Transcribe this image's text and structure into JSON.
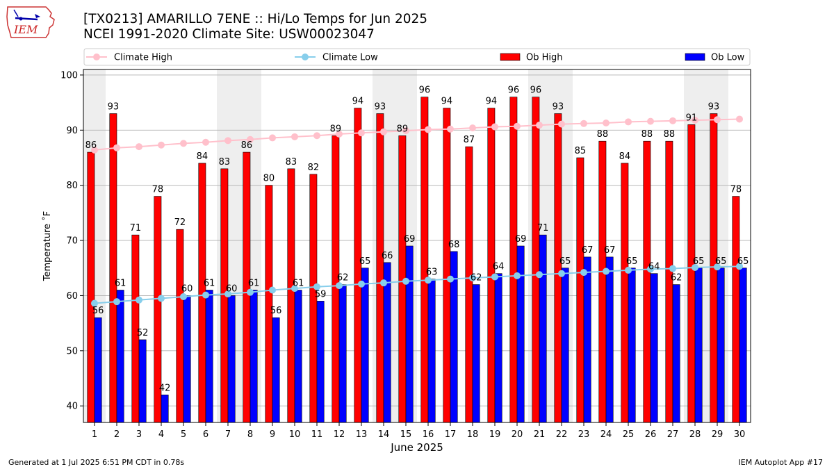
{
  "header": {
    "title": "[TX0213] AMARILLO 7ENE :: Hi/Lo Temps for Jun 2025",
    "subtitle": "NCEI 1991-2020 Climate Site: USW00023047",
    "logo_text": "IEM"
  },
  "footer": {
    "generated": "Generated at 1 Jul 2025 6:51 PM CDT in 0.78s",
    "app": "IEM Autoplot App #17"
  },
  "colors": {
    "ob_high": "#ff0000",
    "ob_low": "#0000ff",
    "climate_high": "#ffc0cb",
    "climate_low": "#87ceeb",
    "weekend_band": "#eeeeee",
    "grid": "#b0b0b0"
  },
  "chart_data": {
    "type": "bar",
    "title": "[TX0213] AMARILLO 7ENE :: Hi/Lo Temps for Jun 2025",
    "subtitle": "NCEI 1991-2020 Climate Site: USW00023047",
    "xlabel": "June 2025",
    "ylabel": "Temperature ˚F",
    "ylim": [
      37,
      101
    ],
    "yticks": [
      40,
      50,
      60,
      70,
      80,
      90,
      100
    ],
    "grid": true,
    "legend_position": "top",
    "categories": [
      1,
      2,
      3,
      4,
      5,
      6,
      7,
      8,
      9,
      10,
      11,
      12,
      13,
      14,
      15,
      16,
      17,
      18,
      19,
      20,
      21,
      22,
      23,
      24,
      25,
      26,
      27,
      28,
      29,
      30
    ],
    "shaded_days": [
      1,
      7,
      8,
      14,
      15,
      21,
      22,
      28,
      29
    ],
    "series": [
      {
        "name": "Climate High",
        "kind": "line",
        "values": [
          86.4,
          86.8,
          87.0,
          87.3,
          87.6,
          87.8,
          88.1,
          88.3,
          88.6,
          88.8,
          89.0,
          89.3,
          89.5,
          89.7,
          89.9,
          90.1,
          90.2,
          90.4,
          90.6,
          90.7,
          90.9,
          91.1,
          91.2,
          91.3,
          91.5,
          91.6,
          91.7,
          91.8,
          91.9,
          92.0
        ]
      },
      {
        "name": "Climate Low",
        "kind": "line",
        "values": [
          58.6,
          58.9,
          59.2,
          59.5,
          59.8,
          60.1,
          60.3,
          60.6,
          61.0,
          61.3,
          61.6,
          61.8,
          62.1,
          62.3,
          62.6,
          62.8,
          63.0,
          63.2,
          63.4,
          63.6,
          63.8,
          64.0,
          64.2,
          64.4,
          64.6,
          64.8,
          64.9,
          65.1,
          65.2,
          65.3
        ]
      },
      {
        "name": "Ob High",
        "kind": "bar",
        "values": [
          86,
          93,
          71,
          78,
          72,
          84,
          83,
          86,
          80,
          83,
          82,
          89,
          94,
          93,
          89,
          96,
          94,
          87,
          94,
          96,
          96,
          93,
          85,
          88,
          84,
          88,
          88,
          91,
          93,
          78
        ]
      },
      {
        "name": "Ob Low",
        "kind": "bar",
        "values": [
          56,
          61,
          52,
          42,
          60,
          61,
          60,
          61,
          56,
          61,
          59,
          62,
          65,
          66,
          69,
          63,
          68,
          62,
          64,
          69,
          71,
          65,
          67,
          67,
          65,
          64,
          62,
          65,
          65,
          65
        ]
      }
    ]
  }
}
